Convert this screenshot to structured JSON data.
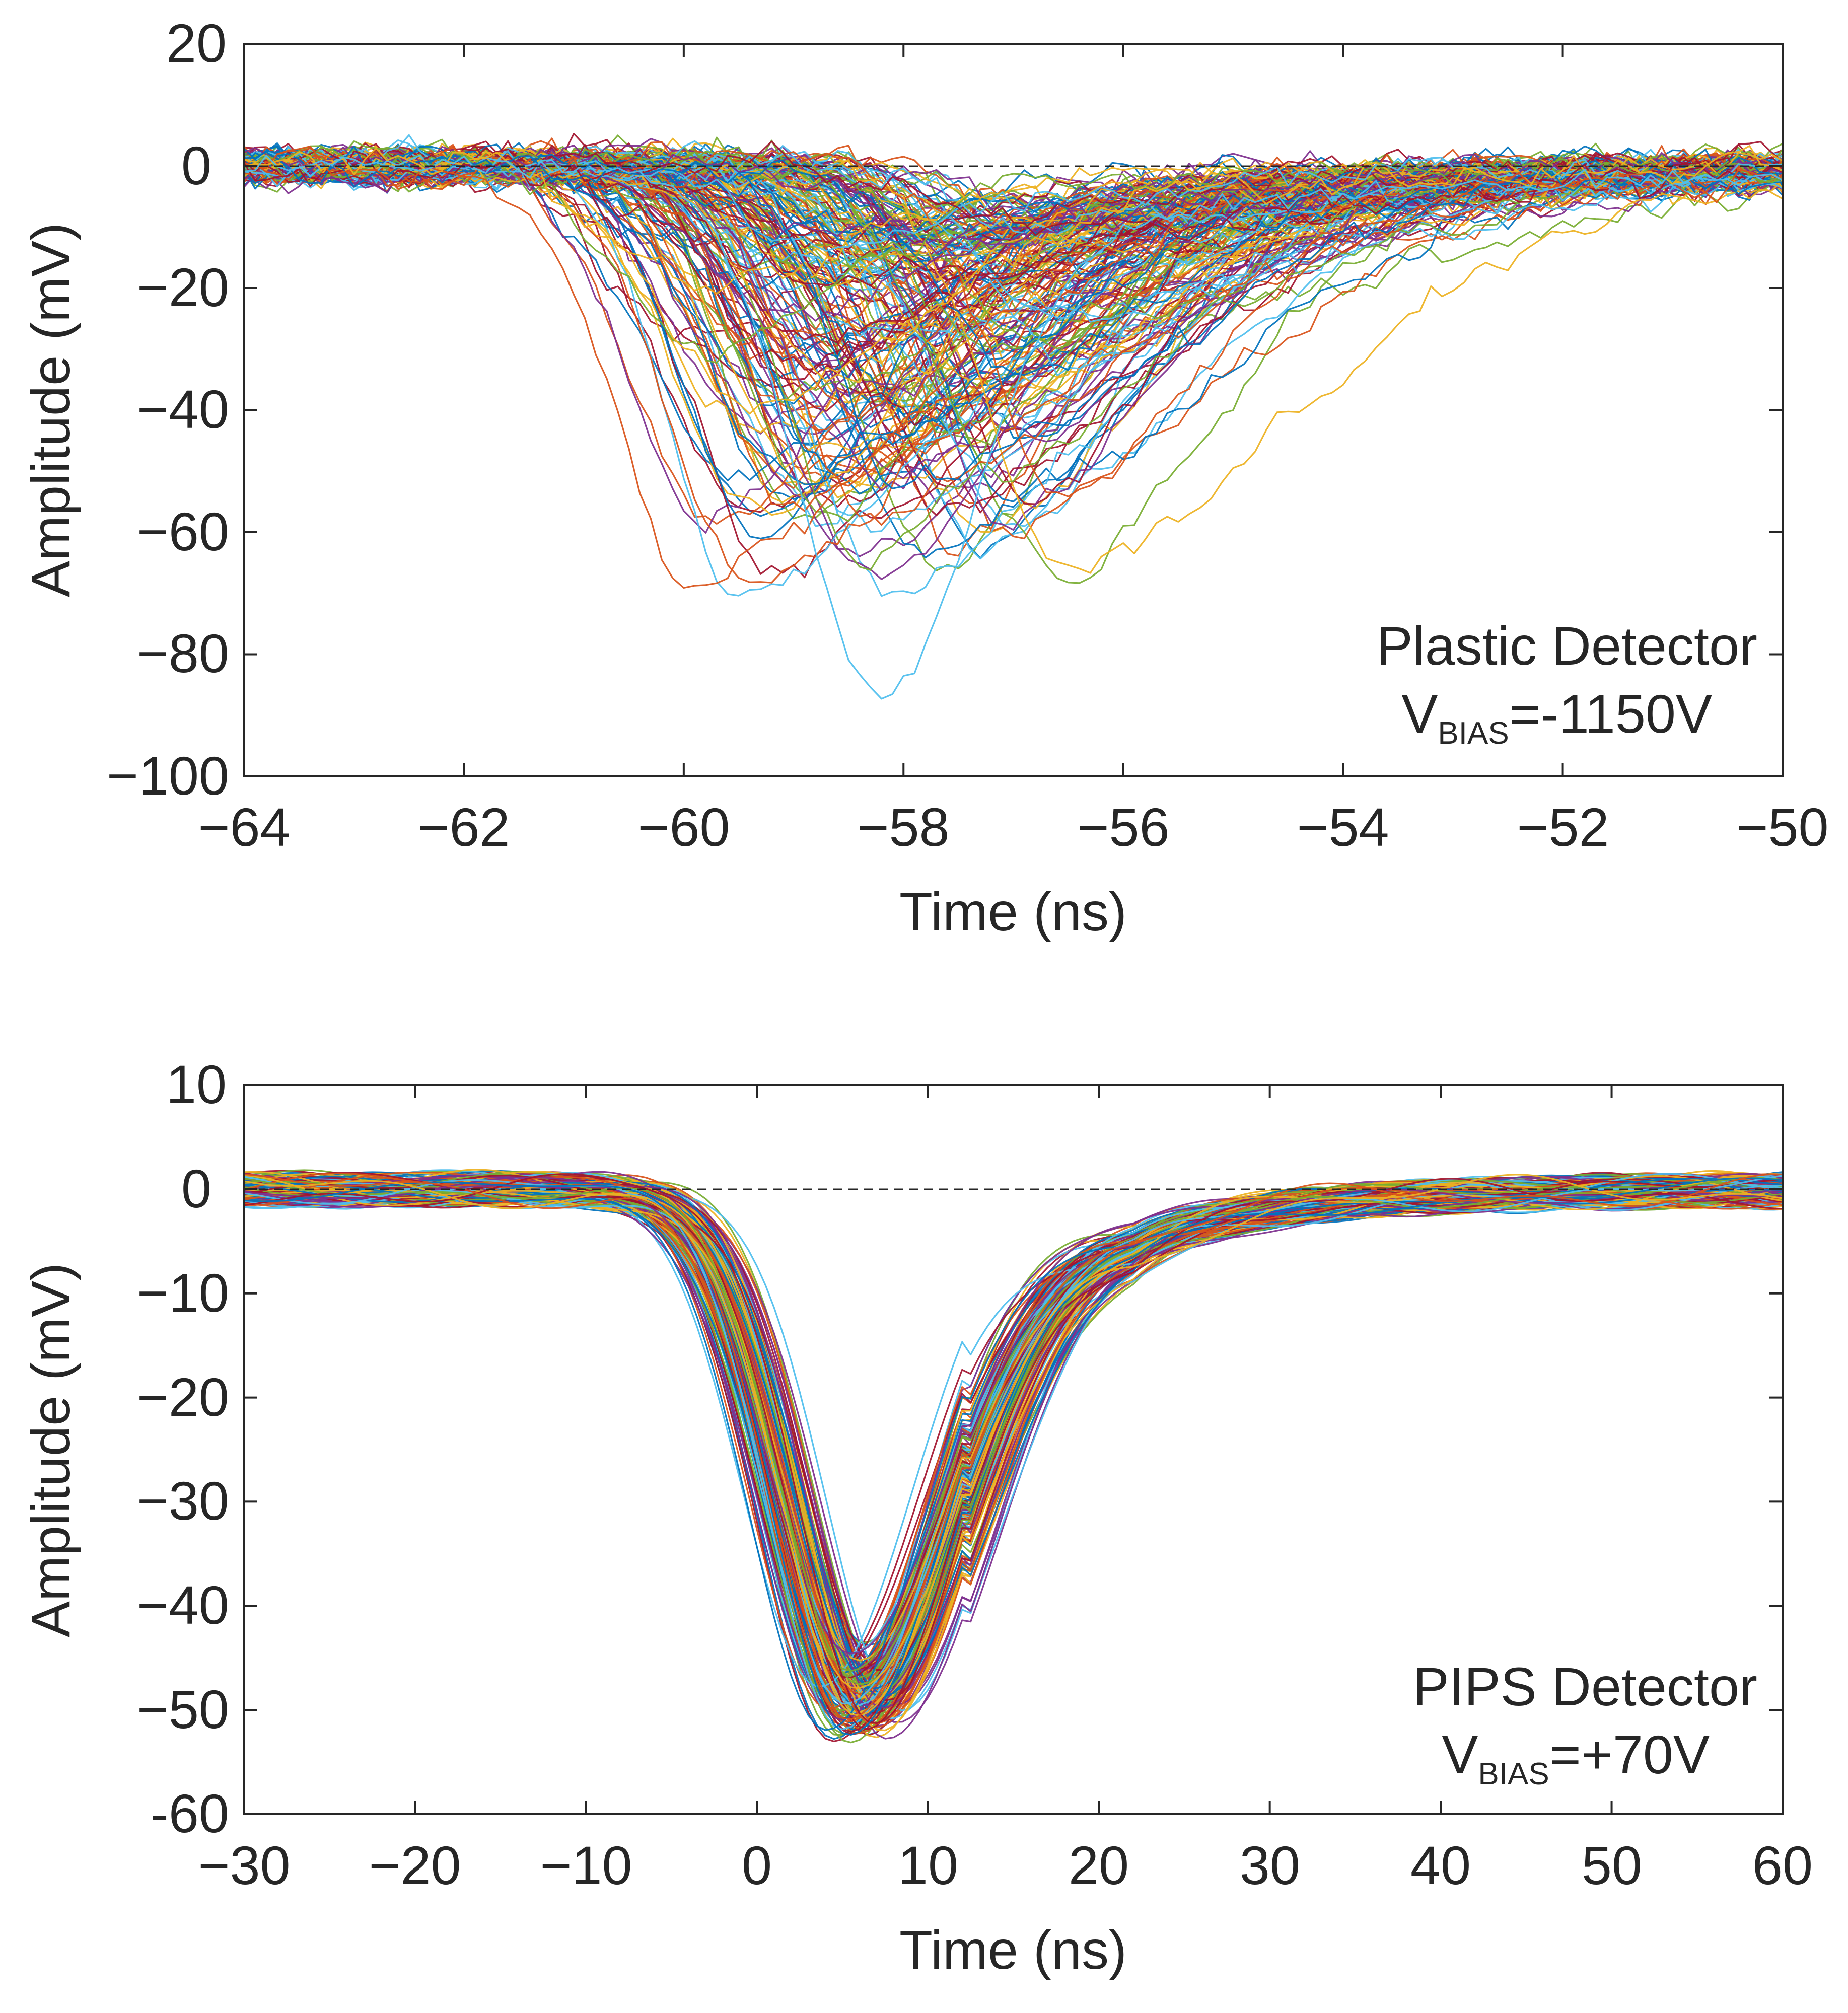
{
  "chart_data": [
    {
      "type": "line",
      "id": "plastic",
      "xlabel": "Time (ns)",
      "ylabel": "Amplitude (mV)",
      "xlim": [
        -64,
        -50
      ],
      "ylim": [
        -100,
        20
      ],
      "xticks": [
        -64,
        -62,
        -60,
        -58,
        -56,
        -54,
        -52,
        -50
      ],
      "yticks": [
        -100,
        -80,
        -60,
        -40,
        -20,
        0,
        20
      ],
      "xtick_labels": [
        "−64",
        "−62",
        "−60",
        "−58",
        "−56",
        "−54",
        "−52",
        "−50"
      ],
      "ytick_labels": [
        "−100",
        "−80",
        "−60",
        "−40",
        "−20",
        "0",
        "20"
      ],
      "reference_line": {
        "y": 0,
        "style": "dashed"
      },
      "annotation": {
        "line1": "Plastic Detector",
        "main": "V",
        "subscript": "BIAS",
        "value": "=-1150V"
      },
      "series_description": "Overlay of many noisy pulse waveforms (colored lines), baseline ~0 mV, negative peaks between about -10 and -87 mV occurring near -60 to -56 ns, deepest about -87 mV at -58.2 ns, slow recovery toward 0 by -50 ns",
      "summary": {
        "baseline_mv": 0,
        "min_peak_mv": -87,
        "min_peak_time_ns": -58.2,
        "peak_time_range_ns": [
          -60,
          -56
        ],
        "recovery_end_ns": -50
      },
      "series_count": 220,
      "seed": 7
    },
    {
      "type": "line",
      "id": "pips",
      "xlabel": "Time (ns)",
      "ylabel": "Amplitude (mV)",
      "xlim": [
        -30,
        60
      ],
      "ylim": [
        -60,
        10
      ],
      "xticks": [
        -30,
        -20,
        -10,
        0,
        10,
        20,
        30,
        40,
        50,
        60
      ],
      "yticks": [
        -60,
        -50,
        -40,
        -30,
        -20,
        -10,
        0,
        10
      ],
      "xtick_labels": [
        "−30",
        "−20",
        "−10",
        "0",
        "10",
        "20",
        "30",
        "40",
        "50",
        "60"
      ],
      "ytick_labels": [
        "-60",
        "−50",
        "−40",
        "−30",
        "−20",
        "−10",
        "0",
        "10"
      ],
      "reference_line": {
        "y": 0,
        "style": "dashed"
      },
      "annotation": {
        "line1": "PIPS Detector",
        "main": "V",
        "subscript": "BIAS",
        "value": "=+70V"
      },
      "series_description": "Overlay of many smooth pulse waveforms (colored lines), baseline ~0 mV, falling at about -5 ns, minimum about -43 to -54 mV near 6 ns, recovering to about -5 mV by 22 ns and to 0 by about 40 ns",
      "summary": {
        "baseline_mv": 0,
        "onset_ns": -5,
        "min_peak_mv": -54,
        "shallowest_peak_mv": -43,
        "min_peak_time_ns": 6,
        "tail_mv_at_22ns": -5,
        "recovery_end_ns": 40
      },
      "series_count": 220,
      "seed": 11
    }
  ],
  "palette": [
    "#0072BD",
    "#D95319",
    "#EDB120",
    "#7E2F8E",
    "#77AC30",
    "#4DBEEE",
    "#A2142F"
  ]
}
